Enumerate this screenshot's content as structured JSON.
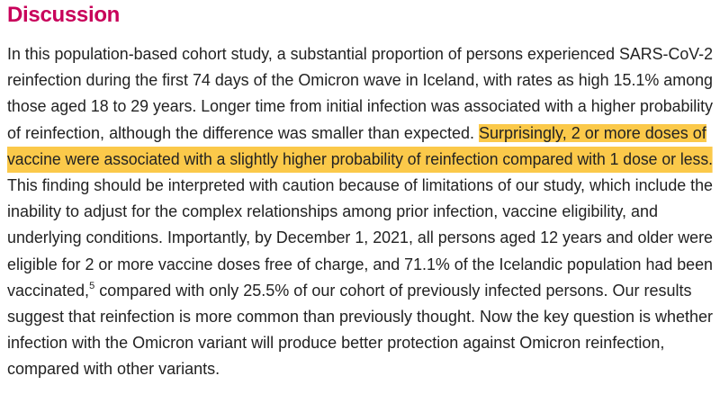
{
  "heading": "Discussion",
  "highlight_color": "#fbc94a",
  "heading_color": "#c8005a",
  "lines": [
    "In this population-based cohort study, a substantial proportion of persons experienced SARS-CoV-2",
    "reinfection during the first 74 days of the Omicron wave in Iceland, with rates as high 15.1% among",
    "those aged 18 to 29 years. Longer time from initial infection was associated with a higher probability",
    "of reinfection, although the difference was smaller than expected. ",
    "Surprisingly, 2 or more doses of",
    "vaccine were associated with a slightly higher probability of reinfection compared with 1 dose or less.",
    "This finding should be interpreted with caution because of limitations of our study, which include the",
    "inability to adjust for the complex relationships among prior infection, vaccine eligibility, and",
    "underlying conditions. Importantly, by December 1, 2021, all persons aged 12 years and older were",
    "eligible for 2 or more vaccine doses free of charge, and 71.1% of the Icelandic population had been",
    "vaccinated,",
    "5",
    " compared with only 25.5% of our cohort of previously infected persons. Our results",
    "suggest that reinfection is more common than previously thought. Now the key question is whether",
    "infection with the Omicron variant will produce better protection against Omicron reinfection,",
    "compared with other variants."
  ]
}
